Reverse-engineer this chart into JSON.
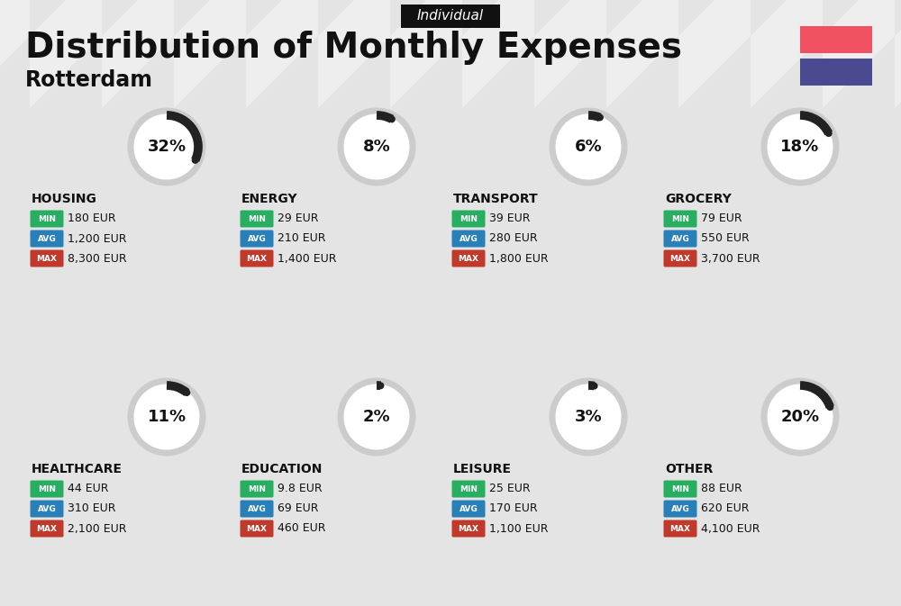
{
  "title": "Distribution of Monthly Expenses",
  "subtitle": "Rotterdam",
  "tag": "Individual",
  "bg_color": "#eeeeee",
  "flag_red": "#f05060",
  "flag_blue": "#4a4a90",
  "categories": [
    {
      "name": "HOUSING",
      "pct": 32,
      "min_val": "180 EUR",
      "avg_val": "1,200 EUR",
      "max_val": "8,300 EUR",
      "row": 0,
      "col": 0
    },
    {
      "name": "ENERGY",
      "pct": 8,
      "min_val": "29 EUR",
      "avg_val": "210 EUR",
      "max_val": "1,400 EUR",
      "row": 0,
      "col": 1
    },
    {
      "name": "TRANSPORT",
      "pct": 6,
      "min_val": "39 EUR",
      "avg_val": "280 EUR",
      "max_val": "1,800 EUR",
      "row": 0,
      "col": 2
    },
    {
      "name": "GROCERY",
      "pct": 18,
      "min_val": "79 EUR",
      "avg_val": "550 EUR",
      "max_val": "3,700 EUR",
      "row": 0,
      "col": 3
    },
    {
      "name": "HEALTHCARE",
      "pct": 11,
      "min_val": "44 EUR",
      "avg_val": "310 EUR",
      "max_val": "2,100 EUR",
      "row": 1,
      "col": 0
    },
    {
      "name": "EDUCATION",
      "pct": 2,
      "min_val": "9.8 EUR",
      "avg_val": "69 EUR",
      "max_val": "460 EUR",
      "row": 1,
      "col": 1
    },
    {
      "name": "LEISURE",
      "pct": 3,
      "min_val": "25 EUR",
      "avg_val": "170 EUR",
      "max_val": "1,100 EUR",
      "row": 1,
      "col": 2
    },
    {
      "name": "OTHER",
      "pct": 20,
      "min_val": "88 EUR",
      "avg_val": "620 EUR",
      "max_val": "4,100 EUR",
      "row": 1,
      "col": 3
    }
  ],
  "min_color": "#27ae60",
  "avg_color": "#2980b9",
  "max_color": "#c0392b",
  "circle_bg_color": "#ffffff",
  "circle_ring_color": "#cccccc",
  "circle_arc_color": "#222222",
  "stripe_color": "#e4e4e4",
  "tag_bg": "#111111",
  "tag_fg": "#ffffff",
  "title_color": "#111111",
  "subtitle_color": "#111111",
  "cat_name_color": "#111111",
  "val_color": "#111111"
}
